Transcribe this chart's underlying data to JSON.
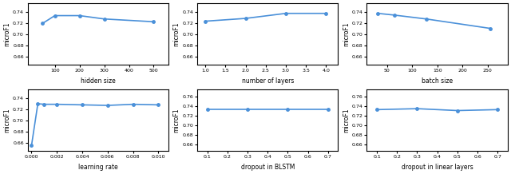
{
  "plots": [
    {
      "x": [
        50,
        100,
        200,
        300,
        500
      ],
      "y": [
        0.719,
        0.733,
        0.733,
        0.727,
        0.722
      ],
      "xlabel": "hidden size",
      "ylabel": "microF1",
      "xlim": [
        -10,
        560
      ],
      "ylim": [
        0.645,
        0.755
      ],
      "xticks": [
        100,
        200,
        300,
        400,
        500
      ],
      "yticks": [
        0.66,
        0.68,
        0.7,
        0.72,
        0.74
      ]
    },
    {
      "x": [
        1.0,
        2.0,
        3.0,
        4.0
      ],
      "y": [
        0.723,
        0.728,
        0.737,
        0.737
      ],
      "xlabel": "number of layers",
      "ylabel": "microF1",
      "xlim": [
        0.8,
        4.3
      ],
      "ylim": [
        0.645,
        0.755
      ],
      "xticks": [
        1.0,
        1.5,
        2.0,
        2.5,
        3.0,
        3.5,
        4.0
      ],
      "yticks": [
        0.66,
        0.68,
        0.7,
        0.72,
        0.74
      ]
    },
    {
      "x": [
        32,
        64,
        128,
        256
      ],
      "y": [
        0.737,
        0.734,
        0.727,
        0.71
      ],
      "xlabel": "batch size",
      "ylabel": "microF1",
      "xlim": [
        10,
        290
      ],
      "ylim": [
        0.645,
        0.755
      ],
      "xticks": [
        50,
        100,
        150,
        200,
        250
      ],
      "yticks": [
        0.66,
        0.68,
        0.7,
        0.72,
        0.74
      ]
    },
    {
      "x": [
        0.0,
        0.0005,
        0.001,
        0.002,
        0.004,
        0.006,
        0.008,
        0.01
      ],
      "y": [
        0.655,
        0.73,
        0.729,
        0.729,
        0.728,
        0.727,
        0.729,
        0.728
      ],
      "xlabel": "learning rate",
      "ylabel": "microF1",
      "xlim": [
        -0.0003,
        0.0108
      ],
      "ylim": [
        0.645,
        0.755
      ],
      "xticks": [
        0.0,
        0.002,
        0.004,
        0.006,
        0.008,
        0.01
      ],
      "yticks": [
        0.66,
        0.68,
        0.7,
        0.72,
        0.74
      ]
    },
    {
      "x": [
        0.1,
        0.3,
        0.5,
        0.7
      ],
      "y": [
        0.733,
        0.733,
        0.733,
        0.733
      ],
      "xlabel": "dropout in BLSTM",
      "ylabel": "microF1",
      "xlim": [
        0.05,
        0.75
      ],
      "ylim": [
        0.645,
        0.775
      ],
      "xticks": [
        0.1,
        0.2,
        0.3,
        0.4,
        0.5,
        0.6,
        0.7
      ],
      "yticks": [
        0.66,
        0.68,
        0.7,
        0.72,
        0.74,
        0.76
      ]
    },
    {
      "x": [
        0.1,
        0.3,
        0.5,
        0.7
      ],
      "y": [
        0.733,
        0.735,
        0.731,
        0.733
      ],
      "xlabel": "dropout in linear layers",
      "ylabel": "microF1",
      "xlim": [
        0.05,
        0.75
      ],
      "ylim": [
        0.645,
        0.775
      ],
      "xticks": [
        0.1,
        0.2,
        0.3,
        0.4,
        0.5,
        0.6,
        0.7
      ],
      "yticks": [
        0.66,
        0.68,
        0.7,
        0.72,
        0.74,
        0.76
      ]
    }
  ],
  "line_color": "#4a90d9",
  "marker": "o",
  "markersize": 2.5,
  "linewidth": 1.2
}
